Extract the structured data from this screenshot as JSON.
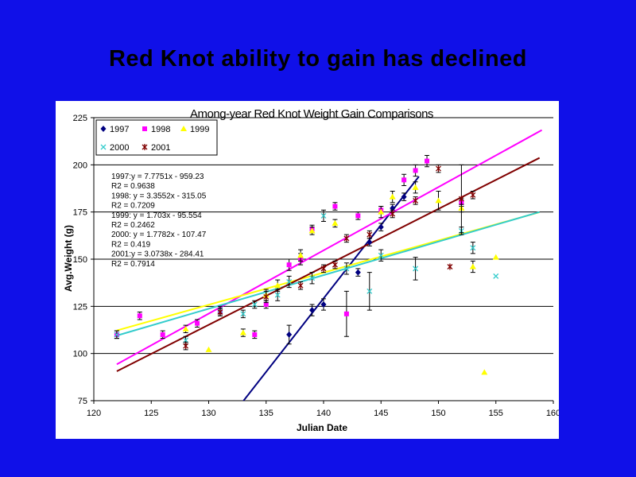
{
  "slide": {
    "title": "Red Knot ability to gain has declined"
  },
  "chart_data": {
    "type": "scatter",
    "title": "Among-year Red Knot Weight Gain Comparisons",
    "xlabel": "Julian Date",
    "ylabel": "Avg.Weight (g)",
    "xlim": [
      120,
      160
    ],
    "ylim": [
      75,
      225
    ],
    "xticks": [
      120,
      125,
      130,
      135,
      140,
      145,
      150,
      155,
      160
    ],
    "yticks": [
      75,
      100,
      125,
      150,
      175,
      200,
      225
    ],
    "grid": "horizontal",
    "legend_position": "top-left",
    "equations": [
      "1997:y = 7.7751x - 959.23",
      "R2 = 0.9638",
      "1998: y = 3.3552x - 315.05",
      "R2 = 0.7209",
      "1999: y = 1.703x - 95.554",
      "R2 = 0.2462",
      "2000: y = 1.7782x - 107.47",
      "R2 = 0.419",
      "2001:y = 3.0738x - 284.41",
      "R2 = 0.7914"
    ],
    "series": [
      {
        "name": "1997",
        "color": "#000080",
        "marker": "diamond",
        "points": [
          [
            137,
            110
          ],
          [
            139,
            123
          ],
          [
            140,
            126
          ],
          [
            143,
            143
          ],
          [
            144,
            159
          ],
          [
            145,
            167
          ],
          [
            146,
            177
          ],
          [
            147,
            183
          ]
        ],
        "errors": [
          5,
          3,
          3,
          2,
          2,
          2,
          2,
          2
        ],
        "trend": [
          [
            132.65,
            72
          ],
          [
            148.3,
            193.8
          ]
        ]
      },
      {
        "name": "1998",
        "color": "#ff00ff",
        "marker": "square",
        "points": [
          [
            122,
            110
          ],
          [
            124,
            120
          ],
          [
            126,
            110
          ],
          [
            129,
            116
          ],
          [
            131,
            122
          ],
          [
            134,
            110
          ],
          [
            135,
            126
          ],
          [
            137,
            147
          ],
          [
            138,
            150
          ],
          [
            139,
            166
          ],
          [
            141,
            178
          ],
          [
            142,
            121
          ],
          [
            143,
            173
          ],
          [
            145,
            176
          ],
          [
            147,
            192
          ],
          [
            148,
            197
          ],
          [
            149,
            202
          ],
          [
            152,
            180
          ]
        ],
        "errors": [
          2,
          2,
          2,
          2,
          2,
          2,
          2,
          3,
          3,
          2,
          2,
          12,
          2,
          2,
          3,
          3,
          3,
          2
        ],
        "trend": [
          [
            122,
            94.3
          ],
          [
            159,
            218.4
          ]
        ]
      },
      {
        "name": "1999",
        "color": "#ffff00",
        "marker": "triangle",
        "points": [
          [
            128,
            113
          ],
          [
            130,
            102
          ],
          [
            133,
            111
          ],
          [
            135,
            131
          ],
          [
            136,
            136
          ],
          [
            138,
            152
          ],
          [
            139,
            165
          ],
          [
            141,
            169
          ],
          [
            145,
            175
          ],
          [
            146,
            183
          ],
          [
            148,
            188
          ],
          [
            150,
            181
          ],
          [
            152,
            177
          ],
          [
            153,
            146
          ],
          [
            154,
            90
          ],
          [
            155,
            151
          ]
        ],
        "errors": [
          2,
          0,
          2,
          3,
          3,
          3,
          2,
          2,
          3,
          3,
          3,
          5,
          2,
          3,
          0,
          0
        ],
        "trend": [
          [
            122,
            112.2
          ],
          [
            158.8,
            174.9
          ]
        ]
      },
      {
        "name": "2000",
        "color": "#33cccc",
        "marker": "x",
        "points": [
          [
            122,
            110
          ],
          [
            128,
            107
          ],
          [
            131,
            123
          ],
          [
            133,
            121
          ],
          [
            134,
            126
          ],
          [
            136,
            131
          ],
          [
            137,
            138
          ],
          [
            139,
            140
          ],
          [
            140,
            173
          ],
          [
            142,
            145
          ],
          [
            144,
            133
          ],
          [
            145,
            152
          ],
          [
            148,
            145
          ],
          [
            152,
            165
          ],
          [
            153,
            156
          ],
          [
            155,
            141
          ]
        ],
        "errors": [
          2,
          2,
          2,
          2,
          2,
          3,
          3,
          3,
          3,
          3,
          10,
          3,
          6,
          2,
          3,
          0
        ],
        "trend": [
          [
            122,
            109.5
          ],
          [
            158.8,
            175
          ]
        ]
      },
      {
        "name": "2001",
        "color": "#800000",
        "marker": "star",
        "points": [
          [
            128,
            104
          ],
          [
            131,
            122
          ],
          [
            135,
            130
          ],
          [
            138,
            136
          ],
          [
            140,
            145
          ],
          [
            141,
            147
          ],
          [
            142,
            161
          ],
          [
            144,
            163
          ],
          [
            146,
            174
          ],
          [
            148,
            181
          ],
          [
            150,
            198
          ],
          [
            151,
            146
          ],
          [
            152,
            182
          ],
          [
            153,
            184
          ]
        ],
        "errors": [
          2,
          2,
          3,
          2,
          2,
          2,
          2,
          2,
          2,
          2,
          2,
          0,
          18,
          2
        ],
        "trend": [
          [
            122,
            90.6
          ],
          [
            158.8,
            203.7
          ]
        ]
      }
    ]
  }
}
